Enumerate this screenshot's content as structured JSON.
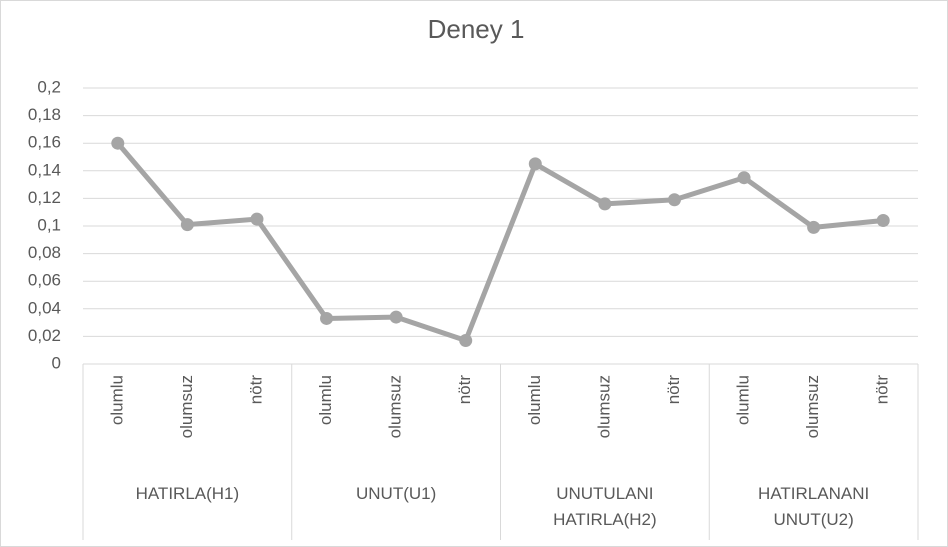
{
  "chart_data": {
    "type": "line",
    "title": "Deney 1",
    "groups": [
      "HATIRLA(H1)",
      "UNUT(U1)",
      "UNUTULANI HATIRLA(H2)",
      "HATIRLANANI UNUT(U2)"
    ],
    "categories": [
      "olumlu",
      "olumsuz",
      "nötr",
      "olumlu",
      "olumsuz",
      "nötr",
      "olumlu",
      "olumsuz",
      "nötr",
      "olumlu",
      "olumsuz",
      "nötr"
    ],
    "series": [
      {
        "name": "Deney 1",
        "color": "#a5a5a5",
        "values": [
          0.16,
          0.101,
          0.105,
          0.033,
          0.034,
          0.017,
          0.145,
          0.116,
          0.119,
          0.135,
          0.099,
          0.104
        ]
      }
    ],
    "ylim": [
      0,
      0.2
    ],
    "yticks": [
      0,
      {
        "value": 0.02,
        "label": "0,02"
      },
      {
        "value": 0.04,
        "label": "0,04"
      },
      {
        "value": 0.06,
        "label": "0,06"
      },
      {
        "value": 0.08,
        "label": "0,08"
      },
      {
        "value": 0.1,
        "label": "0,1"
      },
      {
        "value": 0.12,
        "label": "0,12"
      },
      {
        "value": 0.14,
        "label": "0,14"
      },
      {
        "value": 0.16,
        "label": "0,16"
      },
      {
        "value": 0.18,
        "label": "0,18"
      },
      {
        "value": 0.2,
        "label": "0,2"
      }
    ],
    "grid": true
  }
}
